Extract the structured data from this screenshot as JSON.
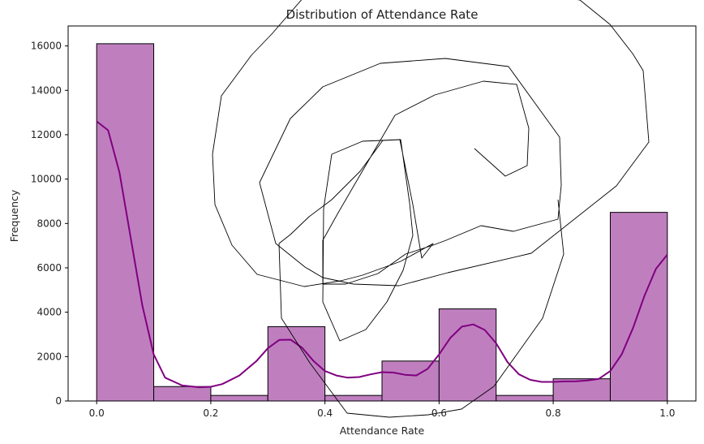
{
  "chart_data": {
    "type": "bar",
    "title": "Distribution of Attendance Rate",
    "xlabel": "Attendance Rate",
    "ylabel": "Frequency",
    "xlim": [
      -0.05,
      1.05
    ],
    "ylim": [
      0,
      16900
    ],
    "xticks": [
      0.0,
      0.2,
      0.4,
      0.6,
      0.8,
      1.0
    ],
    "xtick_labels": [
      "0.0",
      "0.2",
      "0.4",
      "0.6",
      "0.8",
      "1.0"
    ],
    "yticks": [
      0,
      2000,
      4000,
      6000,
      8000,
      10000,
      12000,
      14000,
      16000
    ],
    "ytick_labels": [
      "0",
      "2000",
      "4000",
      "6000",
      "8000",
      "10000",
      "12000",
      "14000",
      "16000"
    ],
    "grid": false,
    "bins": [
      {
        "start": 0.0,
        "end": 0.1,
        "count": 16100
      },
      {
        "start": 0.1,
        "end": 0.2,
        "count": 650
      },
      {
        "start": 0.2,
        "end": 0.3,
        "count": 250
      },
      {
        "start": 0.3,
        "end": 0.4,
        "count": 3350
      },
      {
        "start": 0.4,
        "end": 0.5,
        "count": 250
      },
      {
        "start": 0.5,
        "end": 0.6,
        "count": 1800
      },
      {
        "start": 0.6,
        "end": 0.7,
        "count": 4150
      },
      {
        "start": 0.7,
        "end": 0.8,
        "count": 250
      },
      {
        "start": 0.8,
        "end": 0.9,
        "count": 1000
      },
      {
        "start": 0.9,
        "end": 1.0,
        "count": 8500
      }
    ],
    "kde": {
      "x": [
        0.0,
        0.02,
        0.04,
        0.06,
        0.08,
        0.1,
        0.12,
        0.15,
        0.18,
        0.2,
        0.22,
        0.25,
        0.28,
        0.3,
        0.32,
        0.34,
        0.36,
        0.38,
        0.4,
        0.42,
        0.44,
        0.46,
        0.48,
        0.5,
        0.52,
        0.54,
        0.56,
        0.58,
        0.6,
        0.62,
        0.64,
        0.66,
        0.68,
        0.7,
        0.72,
        0.74,
        0.76,
        0.78,
        0.8,
        0.82,
        0.84,
        0.86,
        0.88,
        0.9,
        0.92,
        0.94,
        0.96,
        0.98,
        1.0
      ],
      "y": [
        12600,
        12200,
        10300,
        7300,
        4300,
        2100,
        1050,
        700,
        620,
        640,
        760,
        1150,
        1800,
        2380,
        2750,
        2760,
        2400,
        1800,
        1350,
        1150,
        1050,
        1080,
        1200,
        1300,
        1280,
        1180,
        1150,
        1450,
        2100,
        2850,
        3350,
        3450,
        3200,
        2600,
        1750,
        1200,
        950,
        860,
        860,
        880,
        890,
        920,
        1000,
        1350,
        2100,
        3300,
        4750,
        5950,
        6600
      ]
    },
    "bar_color": "#bf7fbf",
    "bar_edge_color": "#000000",
    "kde_color": "#800080"
  }
}
